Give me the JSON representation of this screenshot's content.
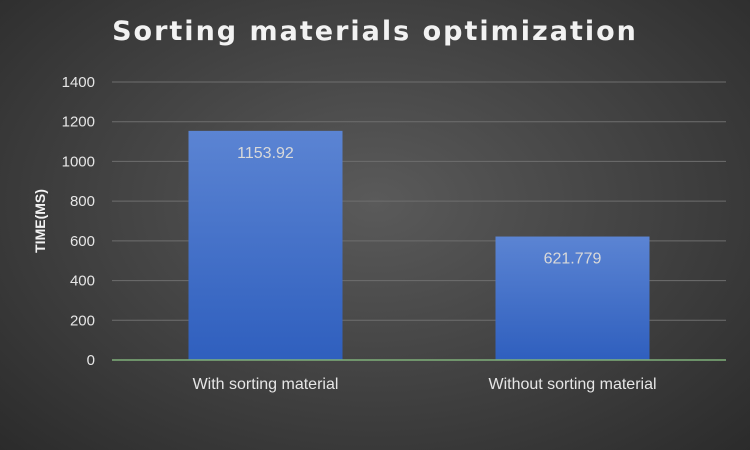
{
  "chart_data": {
    "type": "bar",
    "title": "Sorting materials optimization",
    "xlabel": "",
    "ylabel": "TIME(MS)",
    "categories": [
      "With sorting material",
      "Without sorting material"
    ],
    "values": [
      1153.92,
      621.779
    ],
    "data_labels": [
      "1153.92",
      "621.779"
    ],
    "ylim": [
      0,
      1400
    ],
    "yticks": [
      0,
      200,
      400,
      600,
      800,
      1000,
      1200,
      1400
    ],
    "grid": true,
    "legend": "none",
    "colors": {
      "bar_top": "#5b84d3",
      "bar_bottom": "#2f5fbe",
      "grid": "#6e6e6e",
      "axis": "#7fb07a"
    }
  }
}
